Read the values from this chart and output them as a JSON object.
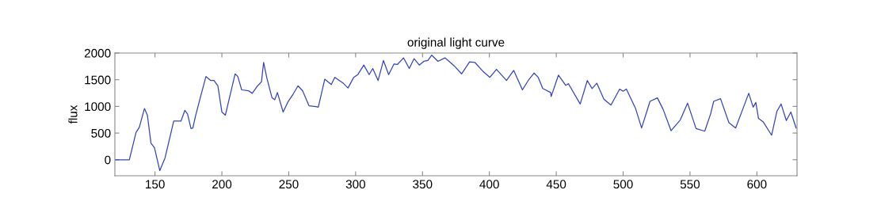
{
  "chart_data": {
    "type": "line",
    "title": "original light curve",
    "ylabel": "flux",
    "x": [
      120,
      130.8,
      135.8,
      138.3,
      142.1,
      144.3,
      147,
      149.6,
      153.6,
      157.5,
      161.5,
      164,
      169.4,
      172.3,
      174.3,
      176.9,
      178.3,
      180.2,
      184.6,
      188.1,
      191.7,
      194.1,
      197,
      200,
      202.6,
      205.9,
      209.9,
      211.9,
      214.8,
      219.8,
      222.7,
      226.7,
      229.6,
      231.2,
      233.6,
      237.5,
      239.5,
      241.5,
      245.8,
      249.4,
      253.4,
      256.9,
      260.3,
      265.2,
      270.2,
      272.1,
      276.9,
      281.8,
      284.4,
      290.7,
      294.3,
      298.6,
      301.6,
      306.1,
      310.1,
      312.8,
      316.8,
      320.8,
      324.7,
      328.7,
      331.2,
      335.8,
      340.1,
      343.7,
      347.6,
      351,
      354,
      356.9,
      361.5,
      366.8,
      373.7,
      379.2,
      385.2,
      389.1,
      395.1,
      400.4,
      405.3,
      412.8,
      418.2,
      424.7,
      429,
      433.4,
      436.5,
      439.9,
      445.8,
      446.2,
      451.6,
      457.1,
      459.1,
      467.9,
      473.2,
      476.8,
      480.3,
      485.6,
      490.9,
      497.4,
      500,
      502.4,
      509.3,
      513.8,
      520.1,
      525.6,
      529.9,
      535.8,
      542.7,
      548.2,
      554.5,
      561,
      565.4,
      567.7,
      572.8,
      579.1,
      584.1,
      590,
      593.9,
      597.2,
      599.2,
      601.2,
      604.7,
      611,
      615,
      618.1,
      622,
      625.4,
      629.3
    ],
    "series": [
      {
        "color": "#3344bb",
        "values": [
          0,
          0,
          510,
          610,
          960,
          835,
          310,
          225,
          -205,
          35,
          460,
          725,
          725,
          925,
          860,
          585,
          595,
          810,
          1235,
          1560,
          1485,
          1485,
          1385,
          895,
          835,
          1185,
          1610,
          1560,
          1310,
          1295,
          1245,
          1385,
          1460,
          1825,
          1535,
          1160,
          1125,
          1260,
          895,
          1085,
          1235,
          1385,
          1295,
          1010,
          995,
          985,
          1510,
          1410,
          1545,
          1435,
          1345,
          1545,
          1595,
          1775,
          1595,
          1710,
          1485,
          1860,
          1595,
          1795,
          1785,
          1910,
          1710,
          1895,
          1775,
          1845,
          1860,
          1960,
          1845,
          1910,
          1760,
          1610,
          1835,
          1825,
          1660,
          1545,
          1695,
          1485,
          1675,
          1310,
          1485,
          1625,
          1545,
          1335,
          1260,
          1185,
          1585,
          1395,
          1425,
          1045,
          1485,
          1335,
          1435,
          1135,
          1025,
          1325,
          1285,
          1325,
          960,
          595,
          1095,
          1160,
          945,
          545,
          745,
          1060,
          585,
          535,
          860,
          1095,
          1145,
          695,
          595,
          985,
          1245,
          985,
          1075,
          775,
          710,
          460,
          910,
          1045,
          735,
          895,
          595
        ]
      }
    ],
    "xlim": [
      120,
      630
    ],
    "ylim": [
      -300,
      2000
    ],
    "xticks": [
      150,
      200,
      250,
      300,
      350,
      400,
      450,
      500,
      550,
      600
    ],
    "yticks": [
      0,
      500,
      1000,
      1500,
      2000
    ],
    "grid": false,
    "legend": false,
    "marker": "none",
    "line_style": "solid"
  }
}
